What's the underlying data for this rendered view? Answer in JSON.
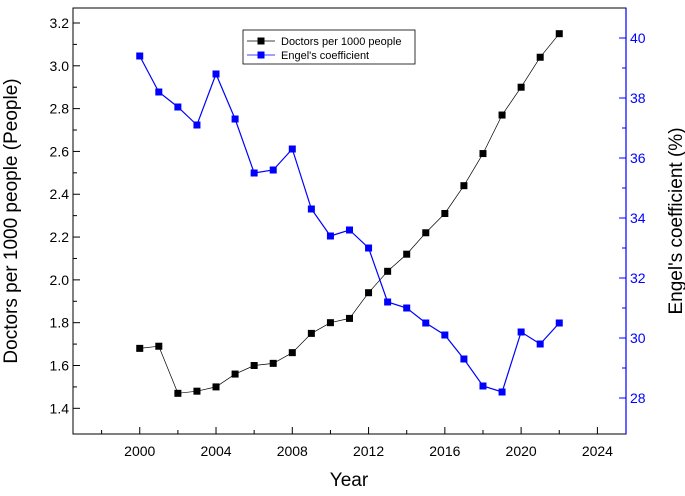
{
  "chart_data": {
    "type": "line",
    "xlabel": "Year",
    "ylabel_left": "Doctors per 1000 people (People)",
    "ylabel_right": "Engel's coefficient (%)",
    "xlim": [
      1996.5,
      2025.5
    ],
    "ylim_left": [
      1.28,
      3.27
    ],
    "ylim_right": [
      26.8,
      41.0
    ],
    "x_ticks": [
      2000,
      2004,
      2008,
      2012,
      2016,
      2020,
      2024
    ],
    "y_left_ticks": [
      1.4,
      1.6,
      1.8,
      2.0,
      2.2,
      2.4,
      2.6,
      2.8,
      3.0,
      3.2
    ],
    "y_right_ticks": [
      28,
      30,
      32,
      34,
      36,
      38,
      40
    ],
    "legend_position": "top-center",
    "grid": false,
    "series": [
      {
        "name": "Doctors per 1000 people",
        "axis": "left",
        "color": "#000000",
        "x": [
          2000,
          2001,
          2002,
          2003,
          2004,
          2005,
          2006,
          2007,
          2008,
          2009,
          2010,
          2011,
          2012,
          2013,
          2014,
          2015,
          2016,
          2017,
          2018,
          2019,
          2020,
          2021,
          2022
        ],
        "values": [
          1.68,
          1.69,
          1.47,
          1.48,
          1.5,
          1.56,
          1.6,
          1.61,
          1.66,
          1.75,
          1.8,
          1.82,
          1.94,
          2.04,
          2.12,
          2.22,
          2.31,
          2.44,
          2.59,
          2.77,
          2.9,
          3.04,
          3.15
        ]
      },
      {
        "name": "Engel's coefficient",
        "axis": "right",
        "color": "#0000ff",
        "x": [
          2000,
          2001,
          2002,
          2003,
          2004,
          2005,
          2006,
          2007,
          2008,
          2009,
          2010,
          2011,
          2012,
          2013,
          2014,
          2015,
          2016,
          2017,
          2018,
          2019,
          2020,
          2021,
          2022
        ],
        "values": [
          39.4,
          38.2,
          37.7,
          37.1,
          38.8,
          37.3,
          35.5,
          35.6,
          36.3,
          34.3,
          33.4,
          33.6,
          33.0,
          31.2,
          31.0,
          30.5,
          30.1,
          29.3,
          28.4,
          28.2,
          30.2,
          29.8,
          30.5
        ]
      }
    ]
  }
}
